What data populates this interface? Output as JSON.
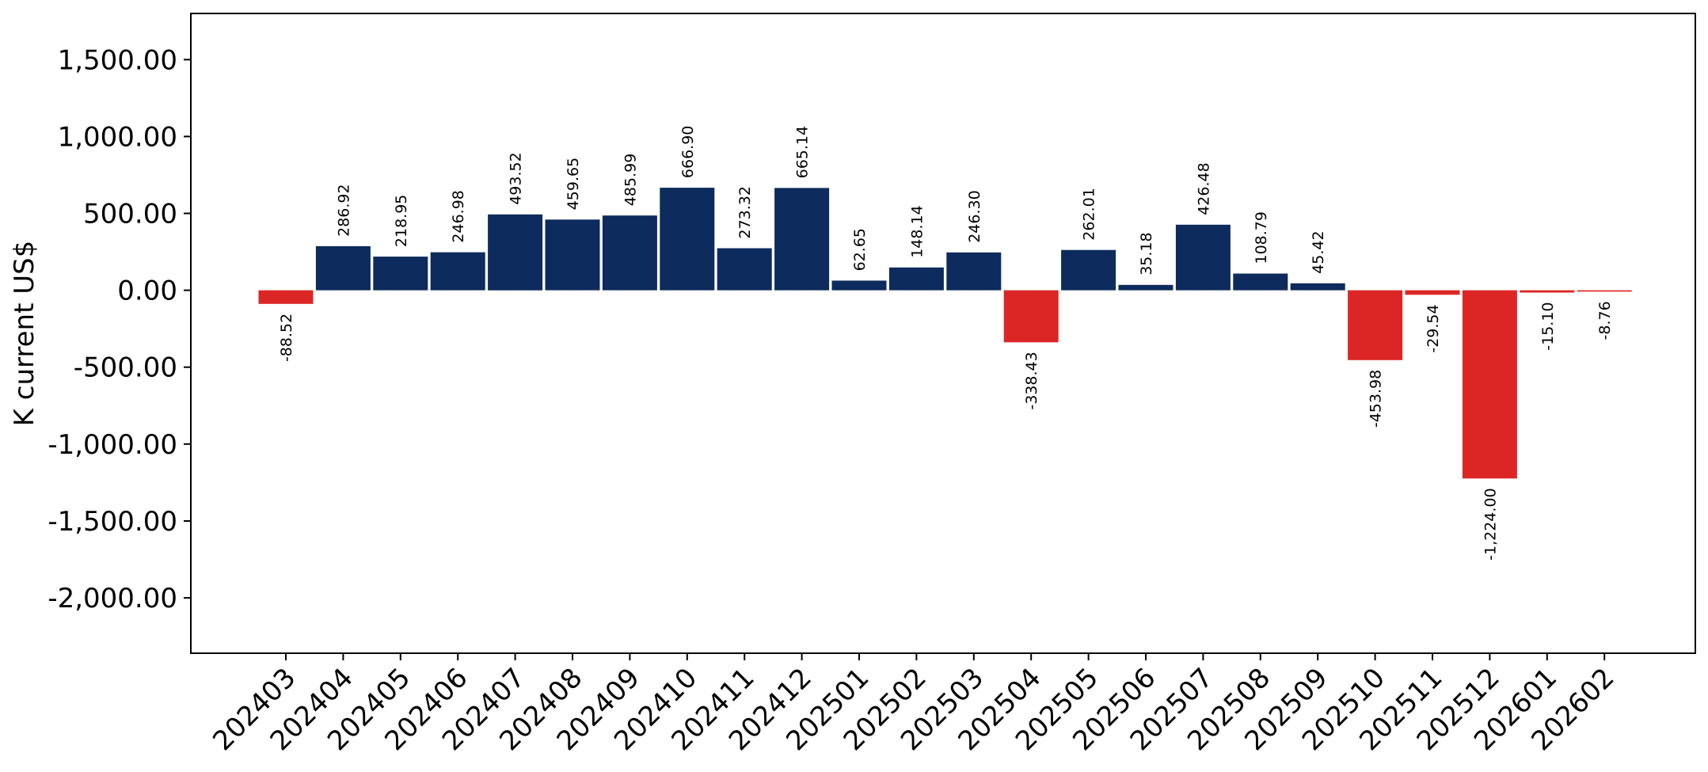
{
  "chart_data": {
    "type": "bar",
    "title": "",
    "xlabel": "",
    "ylabel": "K current US$",
    "categories": [
      "202403",
      "202404",
      "202405",
      "202406",
      "202407",
      "202408",
      "202409",
      "202410",
      "202411",
      "202412",
      "202501",
      "202502",
      "202503",
      "202504",
      "202505",
      "202506",
      "202507",
      "202508",
      "202509",
      "202510",
      "202511",
      "202512",
      "202601",
      "202602"
    ],
    "values": [
      -88.52,
      286.92,
      218.95,
      246.98,
      493.52,
      459.65,
      485.99,
      666.9,
      273.32,
      665.14,
      62.65,
      148.14,
      246.3,
      -338.43,
      262.01,
      35.18,
      426.48,
      108.79,
      45.42,
      -453.98,
      -29.54,
      -1224.0,
      -15.1,
      -8.76
    ],
    "value_labels": [
      "-88.52",
      "286.92",
      "218.95",
      "246.98",
      "493.52",
      "459.65",
      "485.99",
      "666.90",
      "273.32",
      "665.14",
      "62.65",
      "148.14",
      "246.30",
      "-338.43",
      "262.01",
      "35.18",
      "426.48",
      "108.79",
      "45.42",
      "-453.98",
      "-29.54",
      "-1,224.00",
      "-15.10",
      "-8.76"
    ],
    "ylim": [
      -2360,
      1800
    ],
    "yticks": [
      -2000,
      -1500,
      -1000,
      -500,
      0,
      500,
      1000,
      1500
    ],
    "ytick_labels": [
      "-2,000.00",
      "-1,500.00",
      "-1,000.00",
      "-500.00",
      "0.00",
      "500.00",
      "1,000.00",
      "1,500.00"
    ],
    "grid": false,
    "legend": "none",
    "colors": {
      "positive": "#0d2b5c",
      "negative": "#dc2626"
    }
  }
}
